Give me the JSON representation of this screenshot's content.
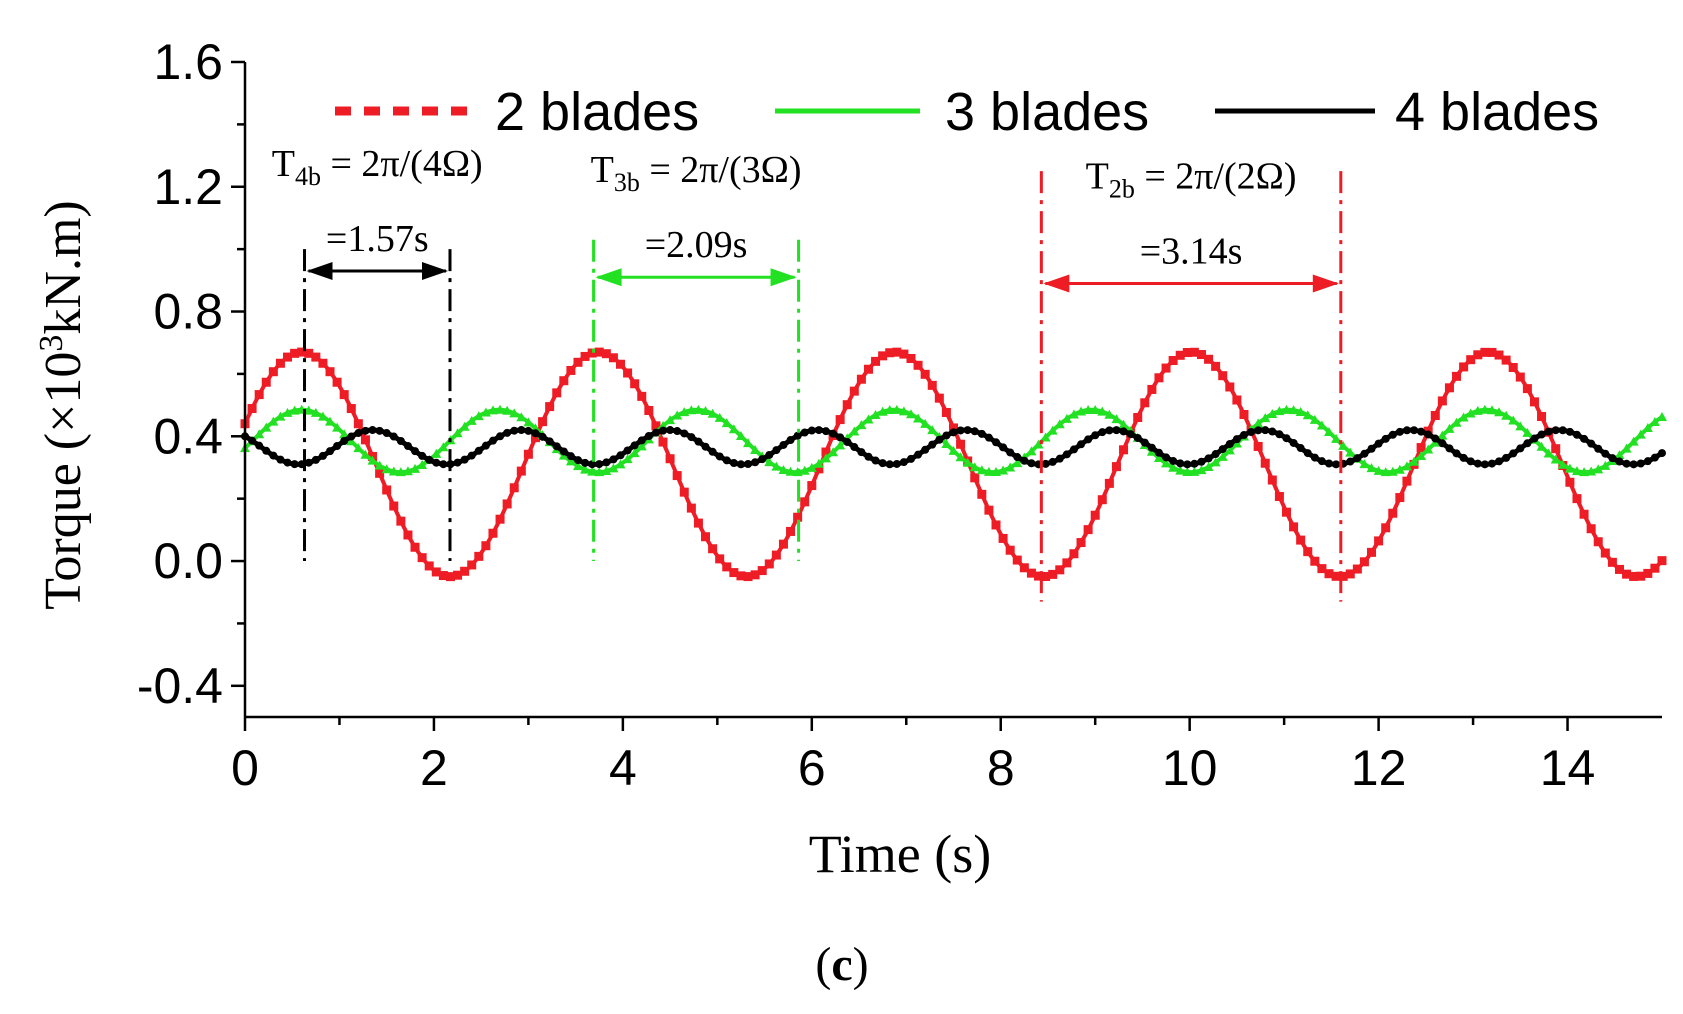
{
  "chart_data": {
    "type": "line",
    "title": "",
    "xlabel": "Time (s)",
    "ylabel_prefix": "Torque (×10",
    "ylabel_sup": "3",
    "ylabel_suffix": "kN.m)",
    "xlim": [
      0,
      15
    ],
    "ylim": [
      -0.5,
      1.6
    ],
    "x_ticks": [
      0,
      2,
      4,
      6,
      8,
      10,
      12,
      14
    ],
    "x_tick_labels": [
      "0",
      "2",
      "4",
      "6",
      "8",
      "10",
      "12",
      "14"
    ],
    "y_ticks": [
      -0.4,
      0.0,
      0.4,
      0.8,
      1.2,
      1.6
    ],
    "y_tick_labels": [
      "-0.4",
      "0.0",
      "0.4",
      "0.8",
      "1.2",
      "1.6"
    ],
    "series": [
      {
        "name": "2 blades",
        "color": "#ee1c25",
        "marker": "square",
        "mean": 0.31,
        "amplitude": 0.36,
        "period": 3.14,
        "phase_peak_t": 0.6,
        "t_start": 0,
        "t_end": 15
      },
      {
        "name": "3 blades",
        "color": "#22e022",
        "marker": "triangle",
        "mean": 0.385,
        "amplitude": 0.1,
        "period": 2.09,
        "phase_peak_t": 0.6,
        "t_start": 0,
        "t_end": 15
      },
      {
        "name": "4 blades",
        "color": "#000000",
        "marker": "dot",
        "mean": 0.365,
        "amplitude": 0.055,
        "period": 1.57,
        "phase_peak_t": 1.35,
        "t_start": 0,
        "t_end": 15
      }
    ],
    "legend": {
      "position": "top",
      "entries": [
        {
          "label": "2 blades",
          "color": "#ee1c25",
          "style": "dashed"
        },
        {
          "label": "3 blades",
          "color": "#22e022",
          "style": "solid"
        },
        {
          "label": "4 blades",
          "color": "#000000",
          "style": "solid"
        }
      ]
    },
    "annotations": [
      {
        "id": "4b",
        "color": "#000000",
        "t1": 0.63,
        "t2": 2.17,
        "line_y_top": 1.0,
        "line_y_bottom": 0.0,
        "arrow_y": 0.93,
        "formula_main": "T",
        "formula_sub": "4b",
        "formula_rest": " = 2π/(4Ω)",
        "value": "=1.57s"
      },
      {
        "id": "3b",
        "color": "#22e022",
        "t1": 3.69,
        "t2": 5.86,
        "line_y_top": 1.03,
        "line_y_bottom": 0.0,
        "arrow_y": 0.91,
        "formula_main": "T",
        "formula_sub": "3b",
        "formula_rest": " = 2π/(3Ω)",
        "value": "=2.09s"
      },
      {
        "id": "2b",
        "color": "#ee1c25",
        "t1": 8.43,
        "t2": 11.6,
        "line_y_top": 1.25,
        "line_y_bottom": -0.13,
        "arrow_y": 0.89,
        "formula_main": "T",
        "formula_sub": "2b",
        "formula_rest": " = 2π/(2Ω)",
        "value": "=3.14s"
      }
    ]
  },
  "caption": {
    "open": "(",
    "letter": "c",
    "close": ")"
  }
}
